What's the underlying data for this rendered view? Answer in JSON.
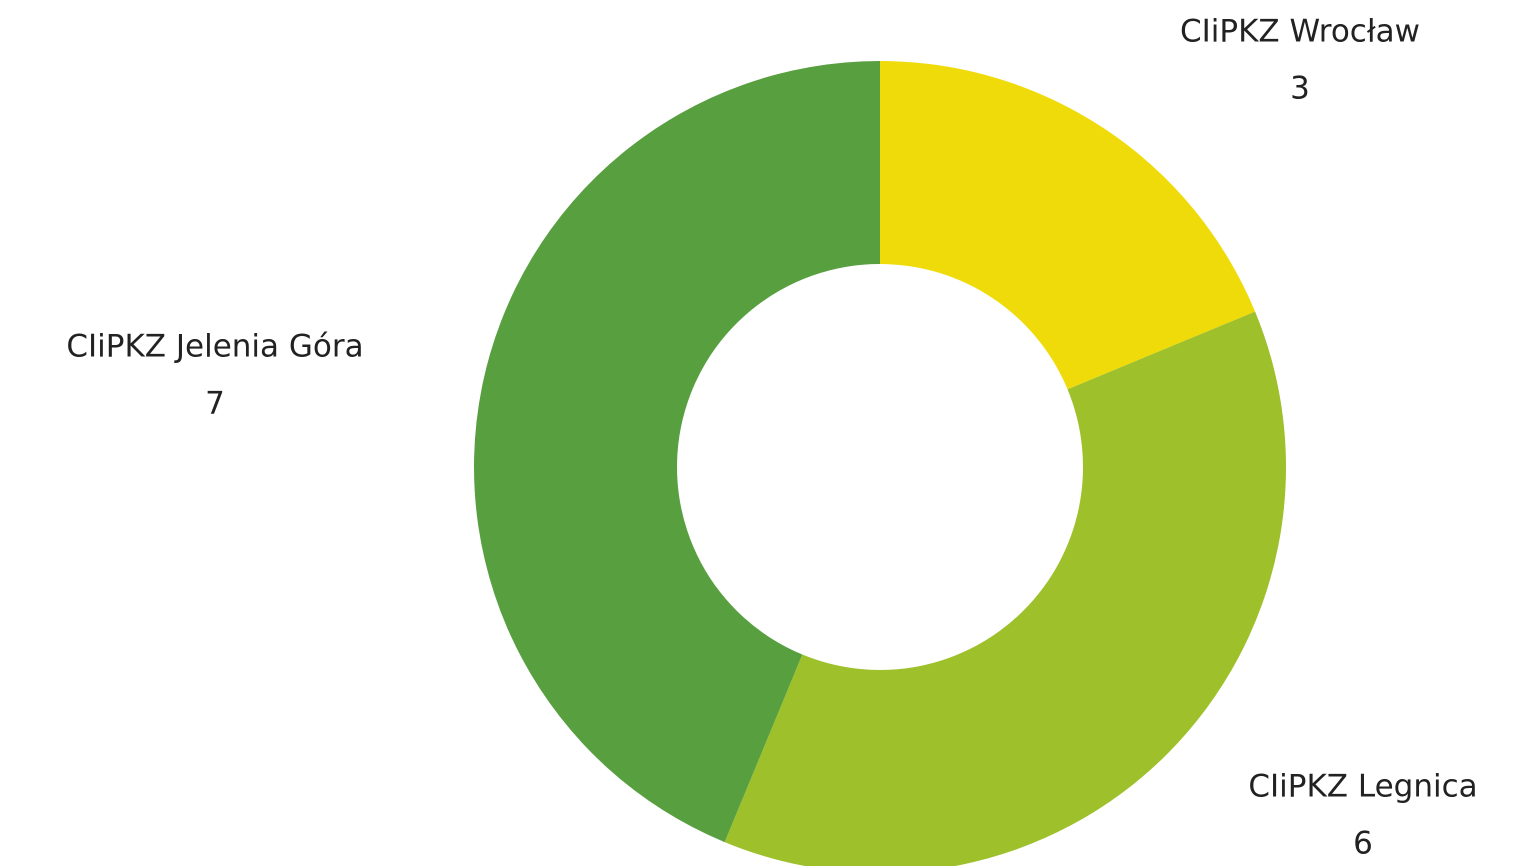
{
  "chart_data": {
    "type": "donut",
    "categories": [
      "CIiPKZ Wrocław",
      "CIiPKZ Legnica",
      "CIiPKZ Jelenia Góra"
    ],
    "series": [
      {
        "name": "CIiPKZ",
        "values": [
          3,
          6,
          7
        ]
      }
    ],
    "colors": [
      "#f0db0a",
      "#9dc02b",
      "#589f40"
    ]
  }
}
